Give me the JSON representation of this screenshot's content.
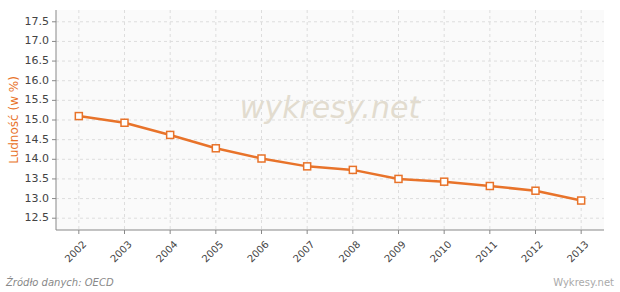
{
  "chart_data": {
    "type": "line",
    "ylabel": "Ludność (w %)",
    "x": [
      2002,
      2003,
      2004,
      2005,
      2006,
      2007,
      2008,
      2009,
      2010,
      2011,
      2012,
      2013
    ],
    "values": [
      15.1,
      14.93,
      14.62,
      14.28,
      14.02,
      13.82,
      13.73,
      13.5,
      13.43,
      13.32,
      13.2,
      12.95
    ],
    "color": "#E8732A",
    "marker": "square",
    "xlim": [
      2001.5,
      2013.5
    ],
    "xticks": [
      2002,
      2003,
      2004,
      2005,
      2006,
      2007,
      2008,
      2009,
      2010,
      2011,
      2012,
      2013
    ],
    "ylim": [
      12.2,
      17.8
    ],
    "yticks": [
      12.5,
      {
        "value": 13,
        "label": "13.0"
      },
      13.5,
      {
        "value": 14,
        "label": "14.0"
      },
      14.5,
      {
        "value": 15,
        "label": "15.0"
      },
      15.5,
      {
        "value": 16,
        "label": "16.0"
      },
      16.5,
      {
        "value": 17,
        "label": "17.0"
      },
      17.5
    ],
    "grid": true,
    "annotations": [
      "wykresy.net",
      "Źródło danych:  OECD",
      "Wykresy.net"
    ]
  }
}
